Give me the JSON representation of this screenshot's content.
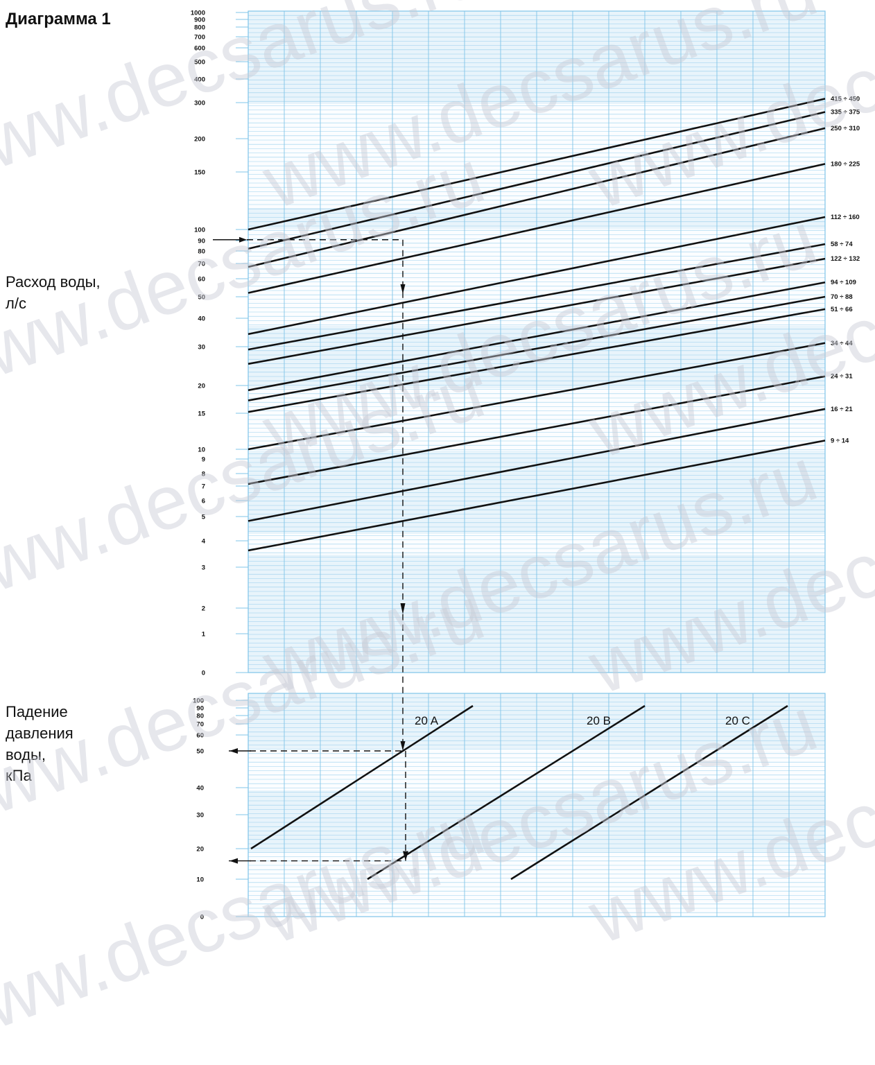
{
  "title": "Диаграмма 1",
  "y_label_top": [
    "Расход воды,",
    "л/с"
  ],
  "y_label_bottom": [
    "Падение",
    "давления",
    "воды,",
    "кПа"
  ],
  "watermark": "www.decsarus.ru",
  "colors": {
    "grid": "#7fc4e8",
    "grid_band": "#e8f4fb",
    "line": "#111111"
  },
  "chart_data": [
    {
      "type": "line",
      "ylabel": "Расход воды, л/с",
      "yticks": [
        "1000",
        "900",
        "800",
        "700",
        "600",
        "500",
        "400",
        "300",
        "200",
        "150",
        "100",
        "90",
        "80",
        "70",
        "60",
        "50",
        "40",
        "30",
        "20",
        "15",
        "10",
        "9",
        "8",
        "7",
        "6",
        "5",
        "4",
        "3",
        "2",
        "1",
        "0"
      ],
      "series": [
        {
          "name": "415 ÷ 450",
          "y0": 100,
          "y1": 315
        },
        {
          "name": "335 ÷ 375",
          "y0": 82,
          "y1": 270
        },
        {
          "name": "250 ÷ 310",
          "y0": 68,
          "y1": 225
        },
        {
          "name": "180 ÷ 225",
          "y0": 52,
          "y1": 165
        },
        {
          "name": "112 ÷ 160",
          "y0": 34,
          "y1": 110
        },
        {
          "name": "58 ÷ 74",
          "y0": 29,
          "y1": 86
        },
        {
          "name": "122 ÷ 132",
          "y0": 25,
          "y1": 74
        },
        {
          "name": "94 ÷ 109",
          "y0": 19,
          "y1": 58
        },
        {
          "name": "70 ÷ 88",
          "y0": 17,
          "y1": 50
        },
        {
          "name": "51 ÷ 66",
          "y0": 15,
          "y1": 44
        },
        {
          "name": "34 ÷ 44",
          "y0": 10,
          "y1": 31
        },
        {
          "name": "24 ÷ 31",
          "y0": 7,
          "y1": 22
        },
        {
          "name": "16 ÷ 21",
          "y0": 4.8,
          "y1": 15.5
        },
        {
          "name": "9 ÷ 14",
          "y0": 3.6,
          "y1": 11
        }
      ],
      "example_flow": 90
    },
    {
      "type": "line",
      "ylabel": "Падение давления воды, кПа",
      "yticks": [
        "100",
        "90",
        "80",
        "70",
        "60",
        "50",
        "40",
        "30",
        "20",
        "10",
        "0"
      ],
      "series": [
        {
          "name": "20 A"
        },
        {
          "name": "20 B"
        },
        {
          "name": "20 C"
        }
      ],
      "example_drops": [
        50,
        16
      ]
    }
  ]
}
